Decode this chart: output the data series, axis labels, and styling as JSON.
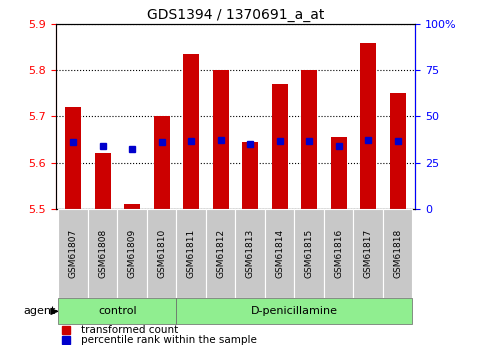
{
  "title": "GDS1394 / 1370691_a_at",
  "samples": [
    "GSM61807",
    "GSM61808",
    "GSM61809",
    "GSM61810",
    "GSM61811",
    "GSM61812",
    "GSM61813",
    "GSM61814",
    "GSM61815",
    "GSM61816",
    "GSM61817",
    "GSM61818"
  ],
  "bar_tops": [
    5.72,
    5.62,
    5.51,
    5.7,
    5.835,
    5.8,
    5.645,
    5.77,
    5.8,
    5.655,
    5.86,
    5.75
  ],
  "bar_base": 5.5,
  "blue_vals": [
    5.645,
    5.635,
    5.63,
    5.645,
    5.647,
    5.648,
    5.64,
    5.647,
    5.647,
    5.637,
    5.649,
    5.647
  ],
  "bar_color": "#CC0000",
  "blue_color": "#0000CC",
  "ylim_left": [
    5.5,
    5.9
  ],
  "ylim_right": [
    0,
    100
  ],
  "yticks_left": [
    5.5,
    5.6,
    5.7,
    5.8,
    5.9
  ],
  "yticks_right": [
    0,
    25,
    50,
    75,
    100
  ],
  "ytick_labels_right": [
    "0",
    "25",
    "50",
    "75",
    "100%"
  ],
  "groups": [
    {
      "label": "control",
      "start": 0,
      "end": 3
    },
    {
      "label": "D-penicillamine",
      "start": 4,
      "end": 11
    }
  ],
  "group_color": "#90EE90",
  "agent_label": "agent",
  "legend_items": [
    {
      "label": "transformed count",
      "color": "#CC0000"
    },
    {
      "label": "percentile rank within the sample",
      "color": "#0000CC"
    }
  ],
  "bar_width": 0.55,
  "bg_gray": "#C8C8C8",
  "title_fontsize": 10,
  "tick_fontsize": 8,
  "sample_fontsize": 6.5,
  "group_fontsize": 8,
  "legend_fontsize": 7.5
}
